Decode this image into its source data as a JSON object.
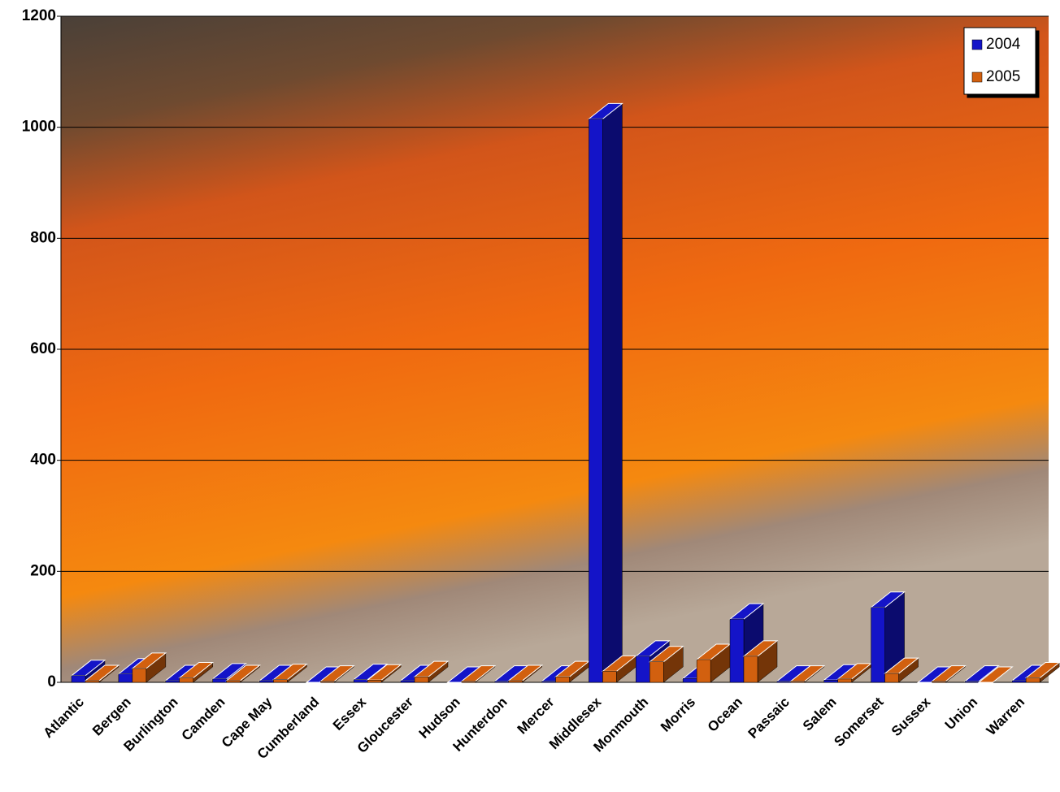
{
  "chart_data": {
    "type": "bar3d",
    "categories": [
      "Atlantic",
      "Bergen",
      "Burlington",
      "Camden",
      "Cape May",
      "Cumberland",
      "Essex",
      "Gloucester",
      "Hudson",
      "Hunterdon",
      "Mercer",
      "Middlesex",
      "Monmouth",
      "Morris",
      "Ocean",
      "Passaic",
      "Salem",
      "Somerset",
      "Sussex",
      "Union",
      "Warren"
    ],
    "series": [
      {
        "name": "2004",
        "color": "#1414c8",
        "values": [
          12,
          15,
          3,
          6,
          3,
          0,
          5,
          3,
          0,
          2,
          2,
          1015,
          47,
          7,
          114,
          2,
          4,
          135,
          0,
          2,
          3
        ]
      },
      {
        "name": "2005",
        "color": "#d2600f",
        "values": [
          3,
          25,
          8,
          3,
          5,
          2,
          4,
          10,
          2,
          3,
          10,
          20,
          37,
          41,
          47,
          2,
          6,
          16,
          2,
          0,
          8
        ]
      }
    ],
    "ylim": [
      0,
      1200
    ],
    "yticks": [
      0,
      200,
      400,
      600,
      800,
      1000,
      1200
    ],
    "grid": true,
    "legend": "top-right"
  }
}
